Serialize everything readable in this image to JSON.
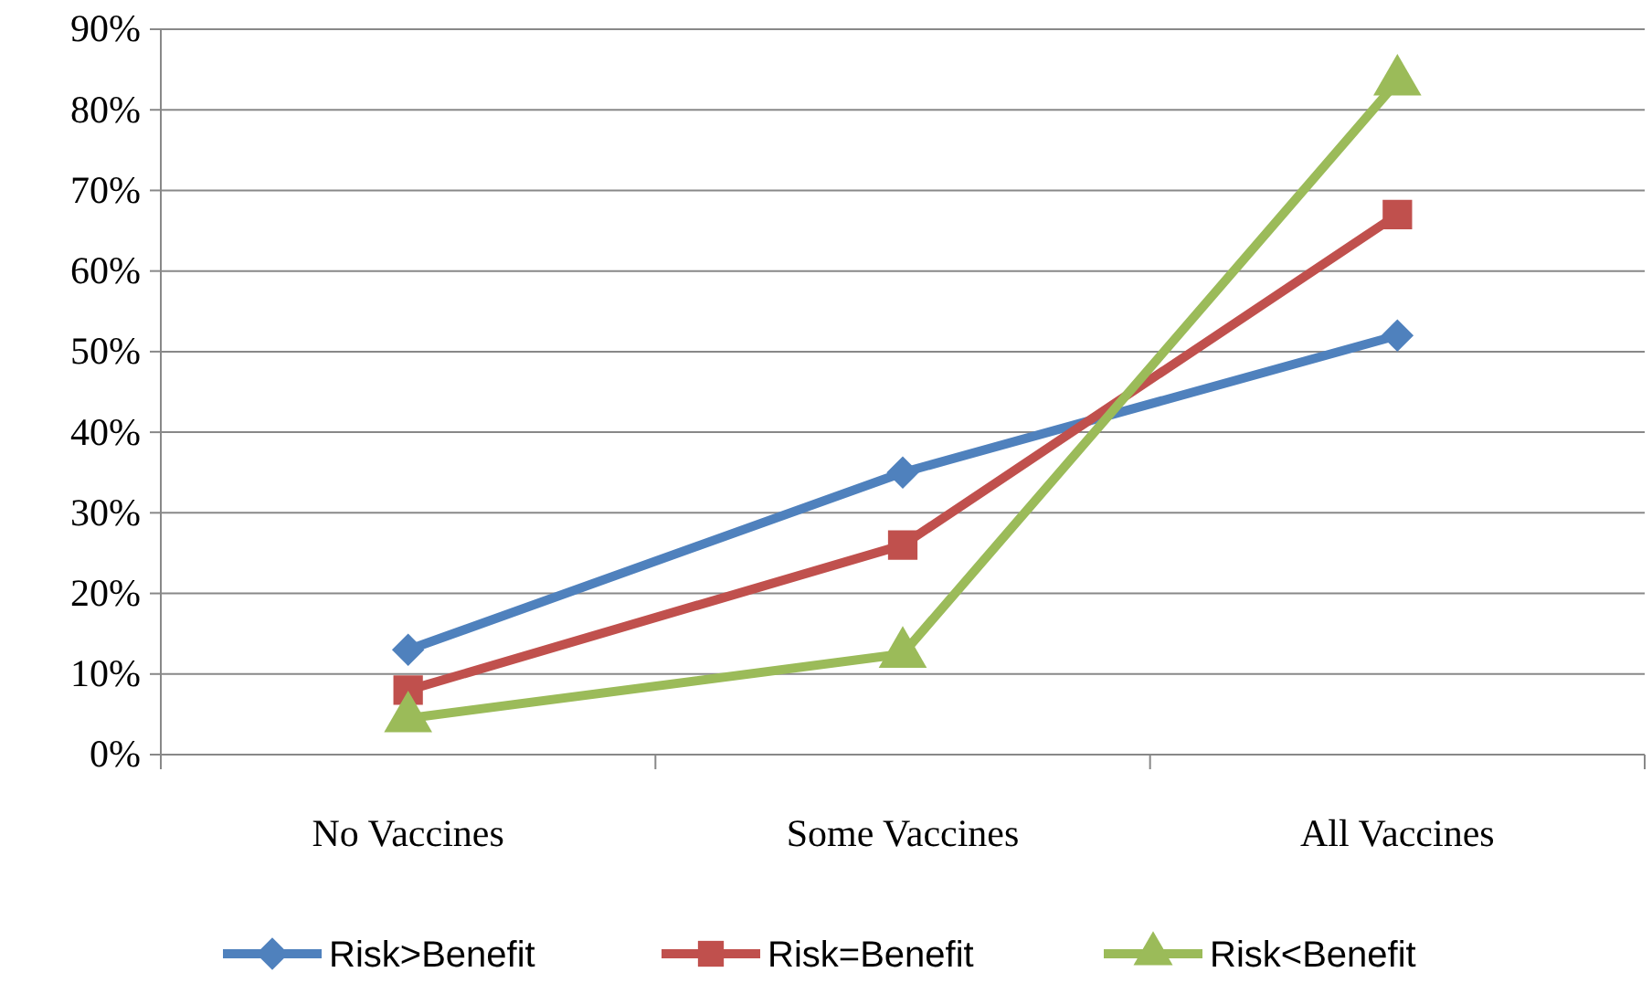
{
  "chart_data": {
    "type": "line",
    "categories": [
      "No Vaccines",
      "Some Vaccines",
      "All Vaccines"
    ],
    "series": [
      {
        "name": "Risk>Benefit",
        "color": "#4f81bd",
        "marker": "diamond",
        "values": [
          13,
          35,
          52
        ]
      },
      {
        "name": "Risk=Benefit",
        "color": "#c0504d",
        "marker": "square",
        "values": [
          8,
          26,
          67
        ]
      },
      {
        "name": "Risk<Benefit",
        "color": "#9bbb59",
        "marker": "triangle",
        "values": [
          4.5,
          12.5,
          83.5
        ]
      }
    ],
    "ylim": [
      0,
      90
    ],
    "yticks": [
      {
        "value": 0,
        "label": "0%"
      },
      {
        "value": 10,
        "label": "10%"
      },
      {
        "value": 20,
        "label": "20%"
      },
      {
        "value": 30,
        "label": "30%"
      },
      {
        "value": 40,
        "label": "40%"
      },
      {
        "value": 50,
        "label": "50%"
      },
      {
        "value": 60,
        "label": "60%"
      },
      {
        "value": 70,
        "label": "70%"
      },
      {
        "value": 80,
        "label": "80%"
      },
      {
        "value": 90,
        "label": "90%"
      }
    ],
    "grid": "y",
    "legend": "bottom"
  }
}
